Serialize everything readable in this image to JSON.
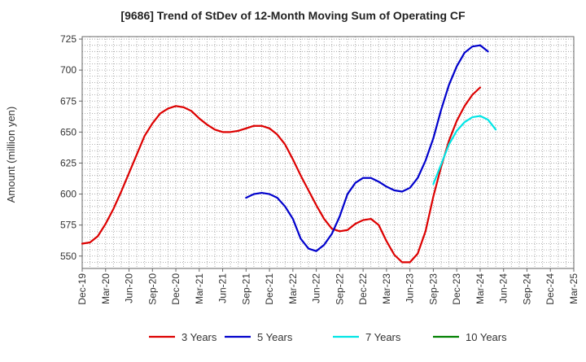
{
  "chart_data": {
    "type": "line",
    "title": "[9686]  Trend of StDev of 12-Month Moving Sum of Operating CF",
    "xlabel": "",
    "ylabel": "Amount (million yen)",
    "ylim": [
      540,
      727
    ],
    "yticks": [
      550,
      575,
      600,
      625,
      650,
      675,
      700,
      725
    ],
    "x_tick_labels": [
      "Dec-19",
      "Mar-20",
      "Jun-20",
      "Sep-20",
      "Dec-20",
      "Mar-21",
      "Jun-21",
      "Sep-21",
      "Dec-21",
      "Mar-22",
      "Jun-22",
      "Sep-22",
      "Dec-22",
      "Mar-23",
      "Jun-23",
      "Sep-23",
      "Dec-23",
      "Mar-24",
      "Jun-24",
      "Sep-24",
      "Dec-24",
      "Mar-25"
    ],
    "grid": true,
    "legend_position": "bottom",
    "series": [
      {
        "name": "3 Years",
        "color": "#dd0000",
        "start_index": 0,
        "values": [
          560,
          561,
          566,
          576,
          588,
          602,
          617,
          632,
          647,
          657,
          665,
          669,
          671,
          670,
          667,
          661,
          656,
          652,
          650,
          650,
          651,
          653,
          655,
          655,
          653,
          648,
          640,
          628,
          615,
          603,
          591,
          580,
          572,
          570,
          571,
          576,
          579,
          580,
          575,
          562,
          551,
          545,
          545,
          552,
          570,
          598,
          622,
          643,
          659,
          671,
          680,
          686
        ]
      },
      {
        "name": "5 Years",
        "color": "#0000cc",
        "start_index": 21,
        "values": [
          597,
          600,
          601,
          600,
          597,
          590,
          580,
          564,
          556,
          554,
          559,
          568,
          582,
          600,
          609,
          613,
          613,
          610,
          606,
          603,
          602,
          605,
          613,
          627,
          645,
          668,
          688,
          703,
          714,
          719,
          720,
          715
        ]
      },
      {
        "name": "7 Years",
        "color": "#00e5e5",
        "start_index": 45,
        "values": [
          608,
          624,
          640,
          651,
          658,
          662,
          663,
          660,
          652
        ]
      },
      {
        "name": "10 Years",
        "color": "#008000",
        "start_index": 0,
        "values": []
      }
    ]
  }
}
